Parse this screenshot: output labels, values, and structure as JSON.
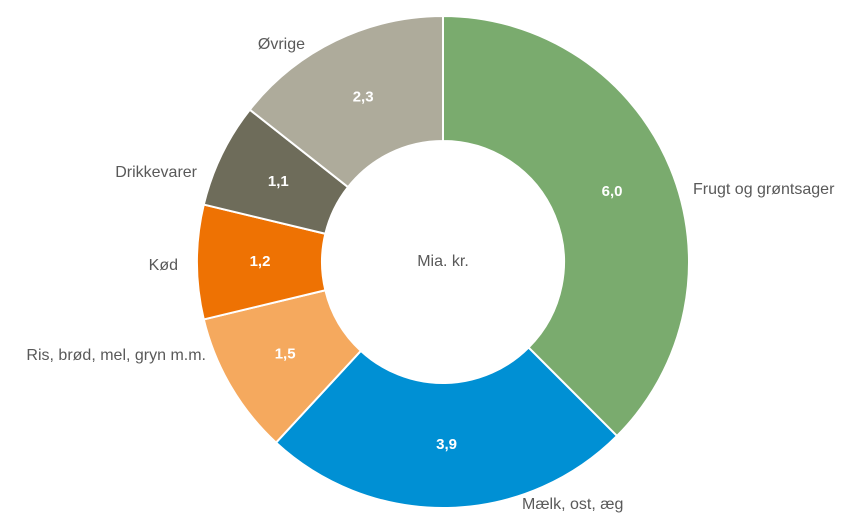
{
  "chart_data": {
    "type": "donut",
    "center_label": "Mia. kr.",
    "categories": [
      "Frugt og grøntsager",
      "Mælk, ost, æg",
      "Ris, brød, mel, gryn m.m.",
      "Kød",
      "Drikkevarer",
      "Øvrige"
    ],
    "values": [
      6.0,
      3.9,
      1.5,
      1.2,
      1.1,
      2.3
    ],
    "value_labels": [
      "6,0",
      "3,9",
      "1,5",
      "1,2",
      "1,1",
      "2,3"
    ],
    "colors": [
      "#7aab6e",
      "#0090d4",
      "#f5a95e",
      "#ee7203",
      "#6e6c5a",
      "#aeab9b"
    ]
  }
}
